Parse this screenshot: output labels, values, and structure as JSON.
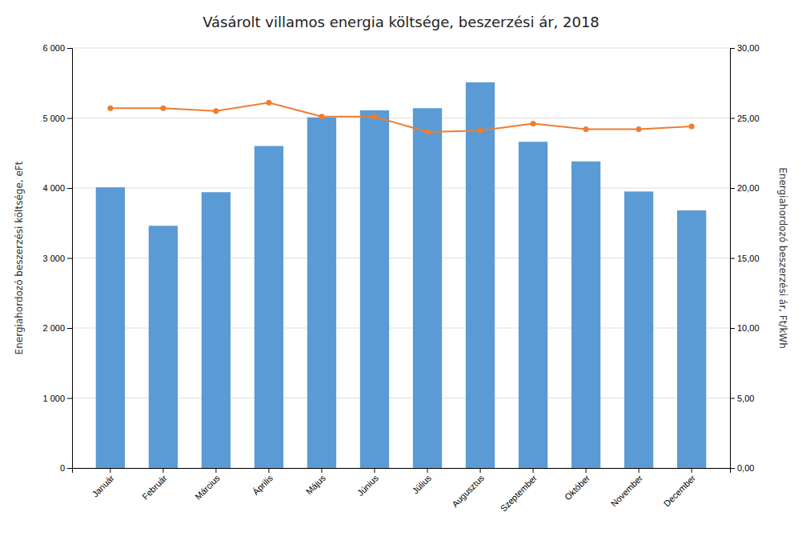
{
  "chart_data": {
    "type": "bar",
    "title": "Vásárolt villamos energia költsége, beszerzési ár, 2018",
    "categories": [
      "Január",
      "Február",
      "Március",
      "Április",
      "Május",
      "Június",
      "Július",
      "Augusztus",
      "Szeptember",
      "Október",
      "November",
      "December"
    ],
    "series": [
      {
        "type": "bar",
        "color": "#5B9BD5",
        "values": [
          4010,
          3460,
          3940,
          4600,
          5010,
          5110,
          5140,
          5510,
          4660,
          4380,
          3950,
          3680
        ]
      },
      {
        "type": "line",
        "axis": "y2",
        "color": "#ED7D31",
        "marker": "circle",
        "line_style": "solid",
        "values": [
          25.7,
          25.7,
          25.5,
          26.1,
          25.1,
          25.1,
          24.0,
          24.1,
          24.6,
          24.2,
          24.2,
          24.4
        ]
      }
    ],
    "ylabel": "Energiahordozó beszerzési költsége, eFt",
    "y2label": "Energiahordozó beszerzési ár, Ft/kWh",
    "ylim": [
      0,
      6000
    ],
    "yticks": [
      0,
      {
        "value": 1000,
        "label": "1 000"
      },
      {
        "value": 2000,
        "label": "2 000"
      },
      {
        "value": 3000,
        "label": "3 000"
      },
      {
        "value": 4000,
        "label": "4 000"
      },
      {
        "value": 5000,
        "label": "5 000"
      },
      {
        "value": 6000,
        "label": "6 000"
      }
    ],
    "y2lim": [
      0,
      30.0
    ],
    "y2ticks": [
      {
        "value": 0.0,
        "label": "0,00"
      },
      {
        "value": 5.0,
        "label": "5,00"
      },
      {
        "value": 10.0,
        "label": "10,00"
      },
      {
        "value": 15.0,
        "label": "15,00"
      },
      {
        "value": 20.0,
        "label": "20,00"
      },
      {
        "value": 25.0,
        "label": "25,00"
      },
      {
        "value": 30.0,
        "label": "30,00"
      }
    ],
    "grid": true
  }
}
